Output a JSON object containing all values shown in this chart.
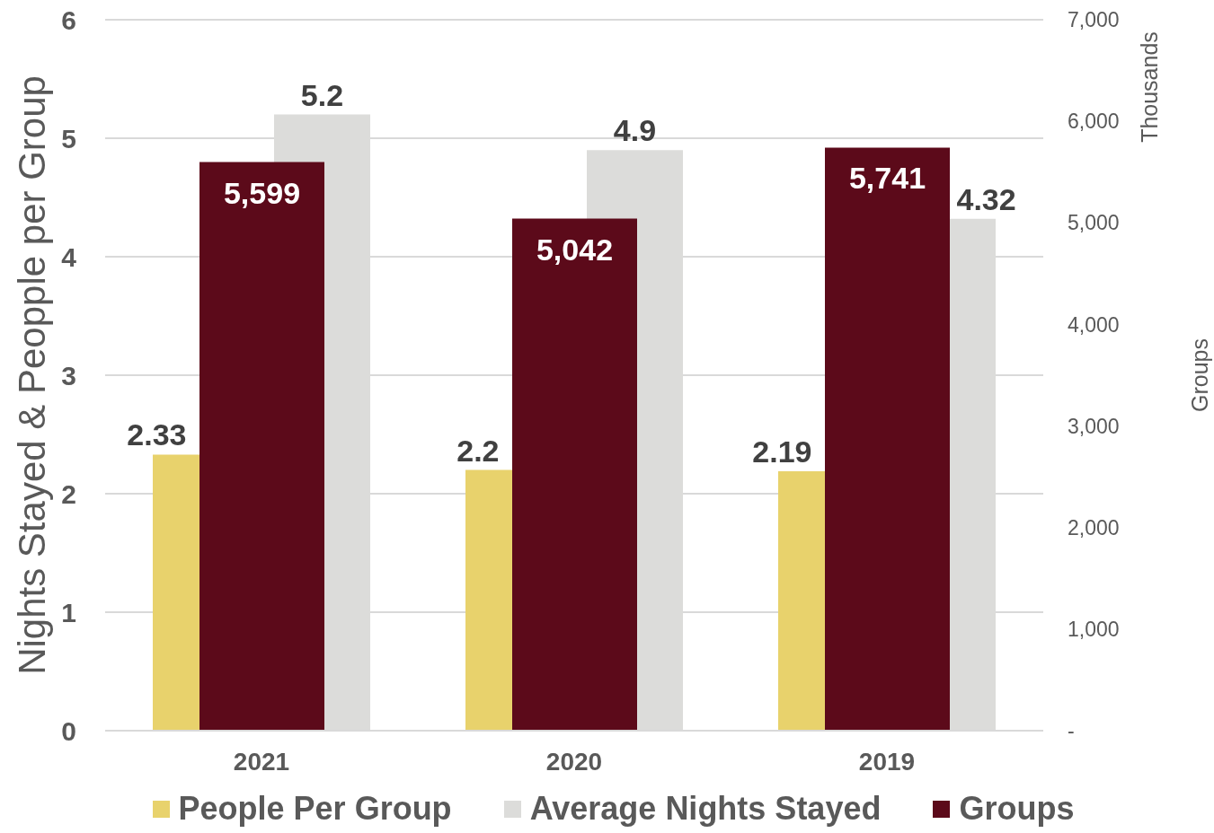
{
  "chart_data": {
    "type": "bar",
    "categories": [
      "2021",
      "2020",
      "2019"
    ],
    "series": [
      {
        "name": "People Per Group",
        "color": "#e8d26c",
        "values": [
          2.33,
          2.2,
          2.19
        ],
        "value_labels": [
          "2.33",
          "2.2",
          "2.19"
        ]
      },
      {
        "name": "Average Nights Stayed",
        "color": "#dcdcda",
        "values": [
          5.2,
          4.9,
          4.32
        ],
        "value_labels": [
          "5.2",
          "4.9",
          "4.32"
        ]
      },
      {
        "name": "Groups",
        "color": "#5c0a1a",
        "values": [
          5599,
          5042,
          5741
        ],
        "axis": "y2",
        "value_labels": [
          "5,599",
          "5,042",
          "5,741"
        ]
      }
    ],
    "ylabel": "Nights Stayed & Peopple per Group",
    "y2label": "Groups",
    "annotations": [
      "Thousands"
    ],
    "ylim": [
      0,
      6
    ],
    "yticks": [
      0,
      1,
      2,
      3,
      4,
      5,
      6
    ],
    "y2lim": [
      0,
      7000
    ],
    "y2ticks": [
      {
        "value": 0,
        "label": "-"
      },
      {
        "value": 1000,
        "label": "1,000"
      },
      {
        "value": 2000,
        "label": "2,000"
      },
      {
        "value": 3000,
        "label": "3,000"
      },
      {
        "value": 4000,
        "label": "4,000"
      },
      {
        "value": 5000,
        "label": "5,000"
      },
      {
        "value": 6000,
        "label": "6,000"
      },
      {
        "value": 7000,
        "label": "7,000"
      }
    ],
    "grid": "y",
    "legend": "bottom"
  }
}
